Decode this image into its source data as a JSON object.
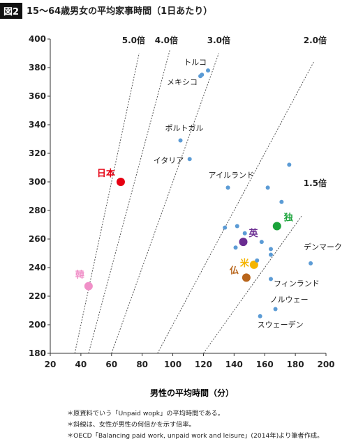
{
  "header": {
    "badge": "図2",
    "title": "15〜64歳男女の平均家事時間（1日あたり）"
  },
  "chart_data": {
    "type": "scatter",
    "title": "15〜64歳男女の平均家事時間（1日あたり）",
    "xlabel": "男性の平均時間（分）",
    "ylabel": "女性の平均時間（分）",
    "xlim": [
      20,
      200
    ],
    "ylim": [
      180,
      400
    ],
    "xticks": [
      20,
      40,
      60,
      80,
      100,
      120,
      140,
      160,
      180,
      200
    ],
    "yticks": [
      180,
      200,
      220,
      240,
      260,
      280,
      300,
      320,
      340,
      360,
      380,
      400
    ],
    "ratio_lines": [
      {
        "ratio": 5.0,
        "label": "5.0倍"
      },
      {
        "ratio": 4.0,
        "label": "4.0倍"
      },
      {
        "ratio": 3.0,
        "label": "3.0倍"
      },
      {
        "ratio": 2.0,
        "label": "2.0倍"
      },
      {
        "ratio": 1.5,
        "label": "1.5倍"
      }
    ],
    "points": [
      {
        "label": "トルコ",
        "x": 123,
        "y": 378
      },
      {
        "label": "",
        "x": 119,
        "y": 375
      },
      {
        "label": "メキシコ",
        "x": 118,
        "y": 374
      },
      {
        "label": "ポルトガル",
        "x": 105,
        "y": 329
      },
      {
        "label": "イタリア",
        "x": 111,
        "y": 316
      },
      {
        "label": "日本",
        "x": 66,
        "y": 300,
        "highlight": true,
        "color": "#e60012"
      },
      {
        "label": "アイルランド",
        "x": 136,
        "y": 296
      },
      {
        "label": "",
        "x": 162,
        "y": 296
      },
      {
        "label": "",
        "x": 176,
        "y": 312
      },
      {
        "label": "",
        "x": 171,
        "y": 286
      },
      {
        "label": "独",
        "x": 168,
        "y": 269,
        "highlight": true,
        "color": "#1aa33a"
      },
      {
        "label": "",
        "x": 134,
        "y": 268
      },
      {
        "label": "",
        "x": 142,
        "y": 269
      },
      {
        "label": "",
        "x": 147,
        "y": 264
      },
      {
        "label": "英",
        "x": 146,
        "y": 258,
        "highlight": true,
        "color": "#6a2c91"
      },
      {
        "label": "",
        "x": 158,
        "y": 258
      },
      {
        "label": "",
        "x": 164,
        "y": 253
      },
      {
        "label": "",
        "x": 164,
        "y": 249
      },
      {
        "label": "",
        "x": 141,
        "y": 254
      },
      {
        "label": "米",
        "x": 153,
        "y": 242,
        "highlight": true,
        "color": "#f4b400"
      },
      {
        "label": "",
        "x": 155,
        "y": 245
      },
      {
        "label": "デンマーク",
        "x": 190,
        "y": 243
      },
      {
        "label": "仏",
        "x": 148,
        "y": 233,
        "highlight": true,
        "color": "#b8651b"
      },
      {
        "label": "フィンランド",
        "x": 164,
        "y": 232
      },
      {
        "label": "韓",
        "x": 45,
        "y": 227,
        "highlight": true,
        "color": "#f090c8"
      },
      {
        "label": "ノルウェー",
        "x": 167,
        "y": 211
      },
      {
        "label": "スウェーデン",
        "x": 157,
        "y": 206
      }
    ]
  },
  "footnotes": [
    "＊原資料でいう「Unpaid wopk」の平均時間である。",
    "＊斜線は、女性が男性の何倍かを示す倍率。",
    "＊OECD「Balancing paid work, unpaid work and leisure」(2014年)より筆者作成。"
  ],
  "colors": {
    "point": "#5b9bd5",
    "axis": "#333333",
    "ratio_line": "#555555"
  }
}
